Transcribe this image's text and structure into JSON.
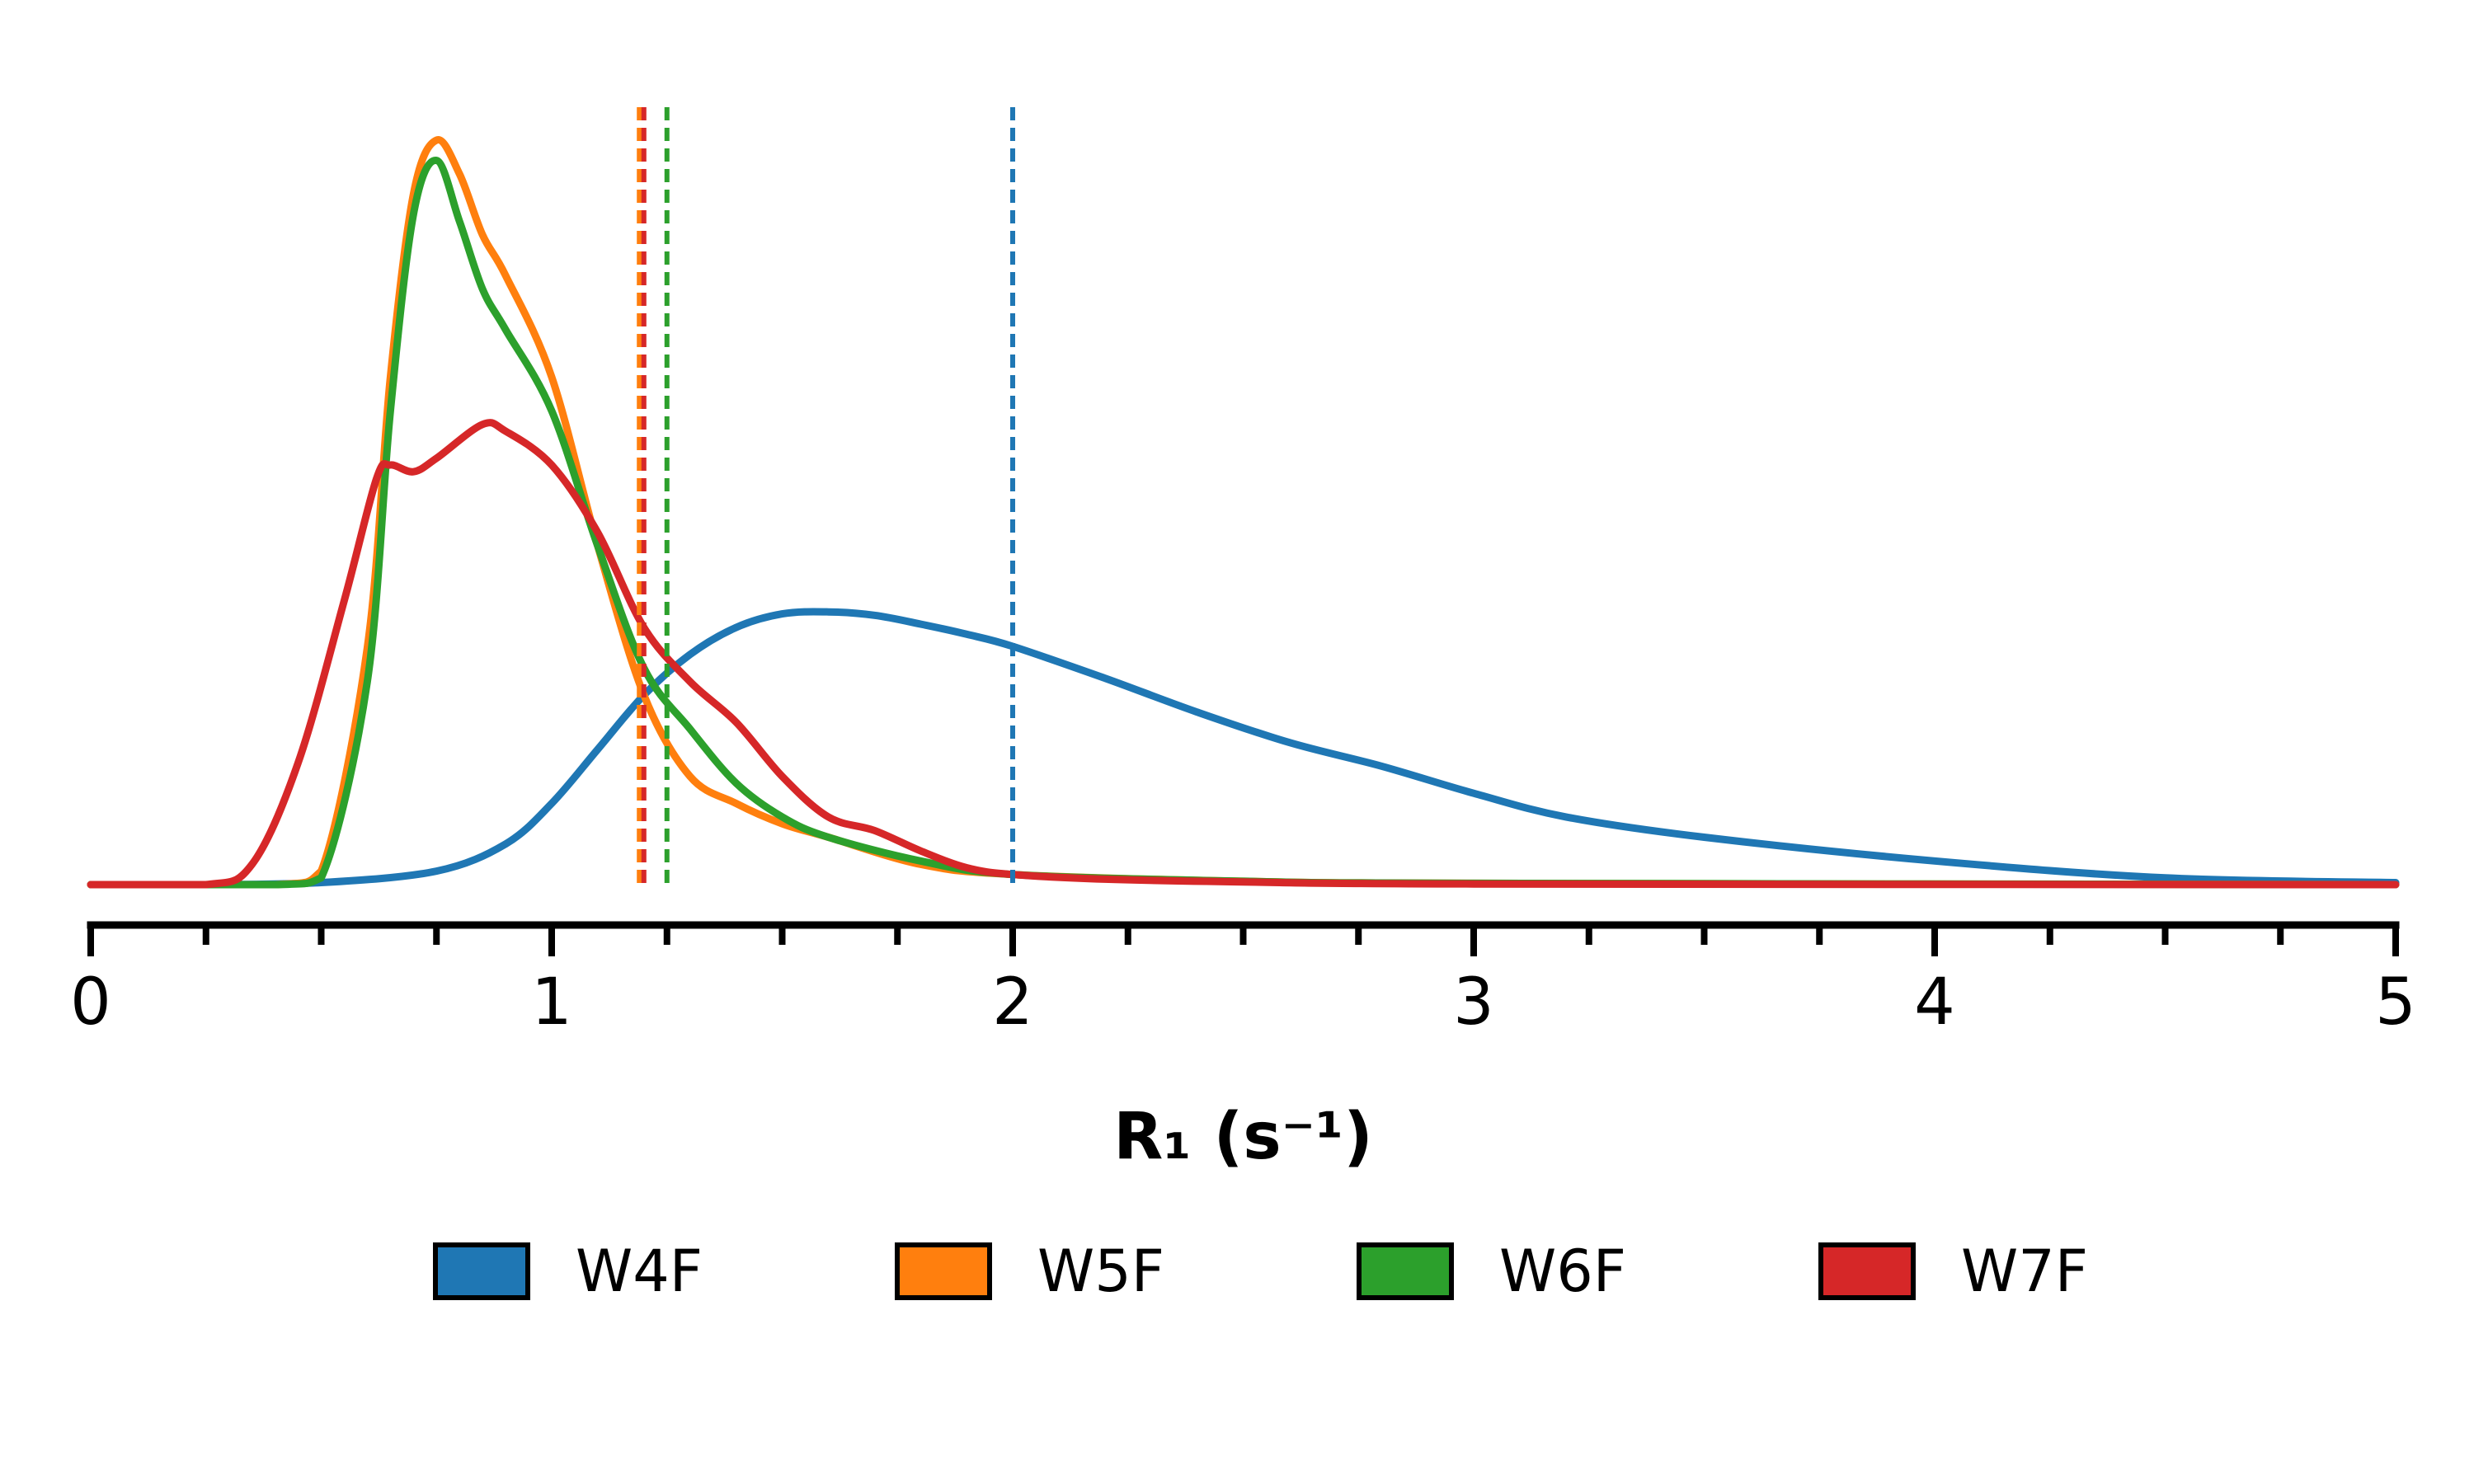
{
  "chart_data": {
    "type": "line",
    "subtype": "density",
    "title": "",
    "xlabel": "R₁ (s⁻¹)",
    "ylabel": "",
    "xlim": [
      0,
      5
    ],
    "x_ticks": [
      0,
      1,
      2,
      3,
      4,
      5
    ],
    "x_minor_step": 0.25,
    "ylim": [
      0,
      1.1
    ],
    "grid": false,
    "legend_placement": "bottom",
    "series": [
      {
        "name": "W4F",
        "color": "#1f77b4",
        "mean": 2.0,
        "x": [
          0,
          0.25,
          0.5,
          0.75,
          0.9,
          1.0,
          1.1,
          1.2,
          1.3,
          1.4,
          1.5,
          1.6,
          1.7,
          1.8,
          1.9,
          2.0,
          2.2,
          2.4,
          2.6,
          2.8,
          3.0,
          3.2,
          3.5,
          4.0,
          4.5,
          5.0
        ],
        "y": [
          0,
          0,
          0.003,
          0.02,
          0.06,
          0.12,
          0.2,
          0.28,
          0.34,
          0.38,
          0.4,
          0.403,
          0.398,
          0.385,
          0.37,
          0.352,
          0.305,
          0.255,
          0.21,
          0.175,
          0.135,
          0.1,
          0.07,
          0.035,
          0.01,
          0.003
        ]
      },
      {
        "name": "W5F",
        "color": "#ff7f0e",
        "mean": 1.19,
        "x": [
          0,
          0.4,
          0.5,
          0.6,
          0.65,
          0.7,
          0.75,
          0.8,
          0.85,
          0.9,
          1.0,
          1.1,
          1.2,
          1.3,
          1.4,
          1.5,
          1.6,
          1.8,
          2.0,
          2.5,
          3.0,
          5.0
        ],
        "y": [
          0,
          0,
          0.02,
          0.35,
          0.75,
          1.02,
          1.1,
          1.05,
          0.96,
          0.9,
          0.75,
          0.5,
          0.28,
          0.16,
          0.12,
          0.09,
          0.07,
          0.03,
          0.015,
          0.005,
          0.002,
          0
        ]
      },
      {
        "name": "W6F",
        "color": "#2ca02c",
        "mean": 1.25,
        "x": [
          0,
          0.4,
          0.5,
          0.6,
          0.65,
          0.7,
          0.75,
          0.8,
          0.85,
          0.9,
          1.0,
          1.1,
          1.2,
          1.3,
          1.4,
          1.5,
          1.6,
          1.8,
          2.0,
          2.5,
          3.0,
          5.0
        ],
        "y": [
          0,
          0,
          0.01,
          0.3,
          0.7,
          0.99,
          1.07,
          0.98,
          0.88,
          0.82,
          0.7,
          0.5,
          0.32,
          0.23,
          0.15,
          0.1,
          0.07,
          0.035,
          0.015,
          0.005,
          0.002,
          0
        ]
      },
      {
        "name": "W7F",
        "color": "#d62728",
        "mean": 1.2,
        "x": [
          0,
          0.25,
          0.35,
          0.45,
          0.55,
          0.62,
          0.65,
          0.7,
          0.75,
          0.85,
          0.9,
          1.0,
          1.1,
          1.2,
          1.3,
          1.4,
          1.5,
          1.6,
          1.7,
          1.8,
          1.9,
          2.0,
          2.2,
          2.5,
          3.0,
          5.0
        ],
        "y": [
          0,
          0,
          0.03,
          0.18,
          0.42,
          0.6,
          0.62,
          0.61,
          0.63,
          0.68,
          0.67,
          0.62,
          0.52,
          0.38,
          0.3,
          0.24,
          0.16,
          0.1,
          0.08,
          0.05,
          0.025,
          0.015,
          0.008,
          0.004,
          0.001,
          0
        ]
      }
    ]
  }
}
